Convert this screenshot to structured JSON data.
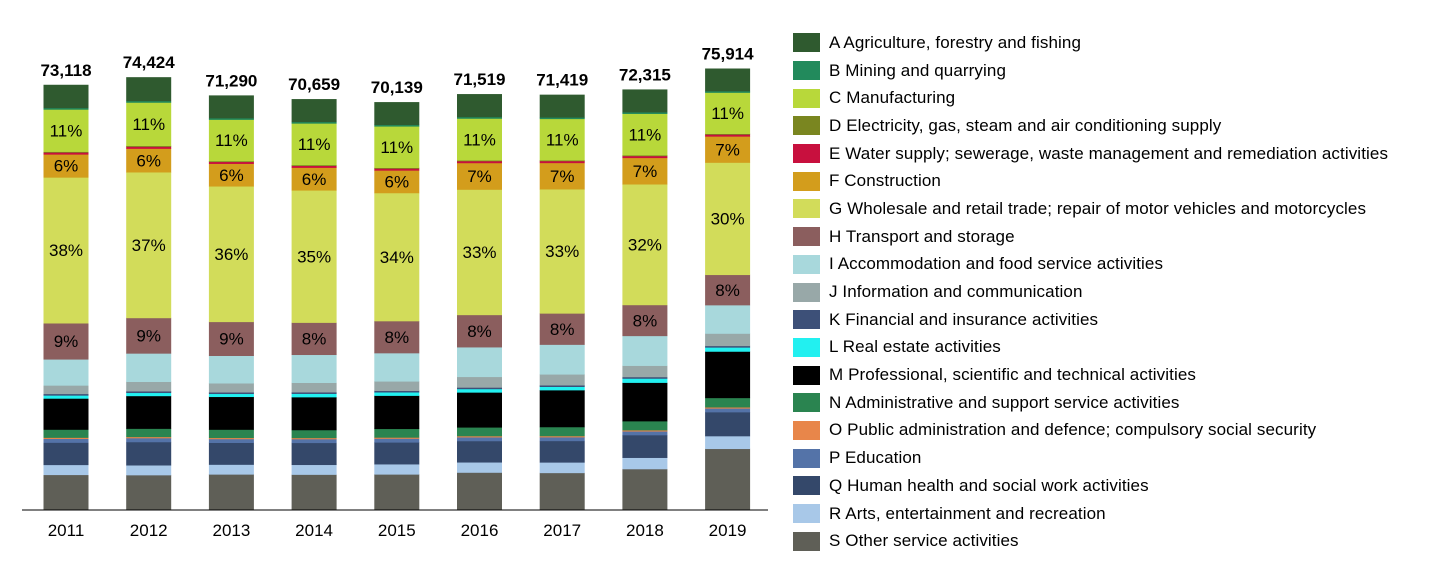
{
  "chart_data": {
    "type": "bar",
    "stacked": true,
    "categories": [
      "2011",
      "2012",
      "2013",
      "2014",
      "2015",
      "2016",
      "2017",
      "2018",
      "2019"
    ],
    "totals": [
      73118,
      74424,
      71290,
      70659,
      70139,
      71519,
      71419,
      72315,
      75914
    ],
    "total_labels": [
      "73,118",
      "74,424",
      "71,290",
      "70,659",
      "70,139",
      "71,519",
      "71,419",
      "72,315",
      "75,914"
    ],
    "ylim": [
      0,
      76000
    ],
    "grid": false,
    "legend_position": "right",
    "series": [
      {
        "name": "S Other service activities",
        "color": "#5f5f57",
        "shares": [
          0.092,
          0.089,
          0.095,
          0.094,
          0.095,
          0.099,
          0.099,
          0.109,
          0.164
        ]
      },
      {
        "name": "R Arts, entertainment and recreation",
        "color": "#a8c8e8",
        "shares": [
          0.026,
          0.025,
          0.026,
          0.026,
          0.027,
          0.027,
          0.028,
          0.03,
          0.034
        ]
      },
      {
        "name": "Q Human health and social work activities",
        "color": "#34486a",
        "shares": [
          0.058,
          0.059,
          0.058,
          0.058,
          0.058,
          0.056,
          0.057,
          0.06,
          0.064
        ]
      },
      {
        "name": "P Education",
        "color": "#5473a8",
        "shares": [
          0.01,
          0.01,
          0.01,
          0.01,
          0.01,
          0.01,
          0.01,
          0.01,
          0.01
        ]
      },
      {
        "name": "O Public administration and defence; compulsory social security",
        "color": "#e8864a",
        "shares": [
          0.003,
          0.003,
          0.003,
          0.003,
          0.003,
          0.003,
          0.003,
          0.003,
          0.003
        ]
      },
      {
        "name": "N Administrative and support service activities",
        "color": "#2a8450",
        "shares": [
          0.021,
          0.021,
          0.022,
          0.021,
          0.023,
          0.023,
          0.024,
          0.024,
          0.025
        ]
      },
      {
        "name": "M Professional, scientific and technical activities",
        "color": "#000000",
        "shares": [
          0.081,
          0.083,
          0.087,
          0.087,
          0.088,
          0.092,
          0.098,
          0.102,
          0.124
        ]
      },
      {
        "name": "L Real estate activities",
        "color": "#22f0f0",
        "shares": [
          0.008,
          0.008,
          0.008,
          0.009,
          0.009,
          0.009,
          0.009,
          0.011,
          0.011
        ]
      },
      {
        "name": "K Financial and insurance activities",
        "color": "#3d5078",
        "shares": [
          0.004,
          0.004,
          0.004,
          0.004,
          0.004,
          0.004,
          0.004,
          0.004,
          0.004
        ]
      },
      {
        "name": "J Information and communication",
        "color": "#98a8a8",
        "shares": [
          0.022,
          0.024,
          0.024,
          0.025,
          0.025,
          0.028,
          0.029,
          0.03,
          0.033
        ]
      },
      {
        "name": "I Accommodation and food service activities",
        "color": "#a8d8dc",
        "shares": [
          0.068,
          0.072,
          0.073,
          0.074,
          0.075,
          0.078,
          0.079,
          0.079,
          0.076
        ]
      },
      {
        "name": "H Transport and storage",
        "color": "#8b5e5e",
        "shares": [
          0.094,
          0.09,
          0.09,
          0.085,
          0.085,
          0.085,
          0.083,
          0.082,
          0.081
        ]
      },
      {
        "name": "G Wholesale and retail trade; repair of motor vehicles and motorcycles",
        "color": "#d2dc5a",
        "shares": [
          0.38,
          0.37,
          0.36,
          0.35,
          0.34,
          0.33,
          0.33,
          0.32,
          0.3
        ]
      },
      {
        "name": "F Construction",
        "color": "#d39d1c",
        "shares": [
          0.06,
          0.06,
          0.06,
          0.06,
          0.06,
          0.07,
          0.07,
          0.07,
          0.07
        ]
      },
      {
        "name": "E Water supply; sewerage, waste management and remediation activities",
        "color": "#c8103e",
        "shares": [
          0.005,
          0.005,
          0.005,
          0.005,
          0.005,
          0.005,
          0.005,
          0.005,
          0.005
        ]
      },
      {
        "name": "D Electricity, gas, steam and air conditioning supply",
        "color": "#7a8620",
        "shares": [
          0.002,
          0.002,
          0.002,
          0.002,
          0.002,
          0.002,
          0.002,
          0.002,
          0.002
        ]
      },
      {
        "name": "C Manufacturing",
        "color": "#b8d83a",
        "shares": [
          0.11,
          0.11,
          0.11,
          0.11,
          0.11,
          0.11,
          0.11,
          0.11,
          0.11
        ]
      },
      {
        "name": "B Mining and quarrying",
        "color": "#228a5c",
        "shares": [
          0.004,
          0.004,
          0.004,
          0.004,
          0.004,
          0.004,
          0.004,
          0.004,
          0.004
        ]
      },
      {
        "name": "A Agriculture, forestry and fishing",
        "color": "#2f5a2f",
        "shares": [
          0.06,
          0.06,
          0.06,
          0.06,
          0.06,
          0.06,
          0.06,
          0.06,
          0.06
        ]
      }
    ],
    "segment_labels": {
      "C Manufacturing": [
        "11%",
        "11%",
        "11%",
        "11%",
        "11%",
        "11%",
        "11%",
        "11%",
        "11%"
      ],
      "F Construction": [
        "6%",
        "6%",
        "6%",
        "6%",
        "6%",
        "7%",
        "7%",
        "7%",
        "7%"
      ],
      "G Wholesale and retail trade; repair of motor vehicles and motorcycles": [
        "38%",
        "37%",
        "36%",
        "35%",
        "34%",
        "33%",
        "33%",
        "32%",
        "30%"
      ],
      "H Transport and storage": [
        "9%",
        "9%",
        "9%",
        "8%",
        "8%",
        "8%",
        "8%",
        "8%",
        "8%"
      ]
    }
  },
  "legend_order": [
    "A Agriculture, forestry and fishing",
    "B Mining and quarrying",
    "C Manufacturing",
    "D Electricity, gas, steam and air conditioning supply",
    "E Water supply; sewerage, waste management and remediation activities",
    "F Construction",
    "G Wholesale and retail trade; repair of motor vehicles and motorcycles",
    "H Transport and storage",
    "I Accommodation and food service activities",
    "J Information and communication",
    "K Financial and insurance activities",
    "L Real estate activities",
    "M Professional, scientific and technical activities",
    "N Administrative and support service activities",
    "O Public administration and defence; compulsory social security",
    "P Education",
    "Q Human health and social work activities",
    "R Arts, entertainment and recreation",
    "S Other service activities"
  ]
}
